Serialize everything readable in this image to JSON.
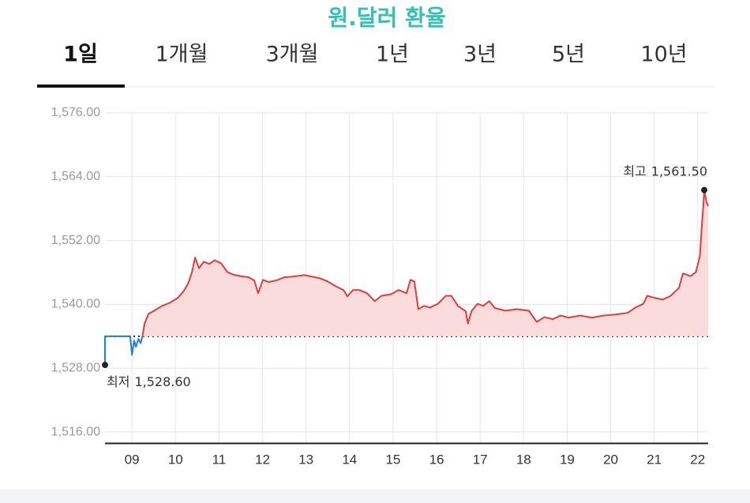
{
  "title": "원.달러 환율",
  "tabs": [
    "1일",
    "1개월",
    "3개월",
    "1년",
    "3년",
    "5년",
    "10년"
  ],
  "selected_tab": 0,
  "chart_data": {
    "type": "line",
    "xlim": [
      8.38,
      22.24
    ],
    "xticks": [
      {
        "value": 9,
        "label": "09"
      },
      10,
      11,
      12,
      13,
      14,
      15,
      16,
      17,
      18,
      19,
      20,
      21,
      22
    ],
    "ylim": [
      1514,
      1576
    ],
    "yticks": [
      {
        "value": 1576,
        "label": "1,576.00"
      },
      {
        "value": 1564,
        "label": "1,564.00"
      },
      {
        "value": 1552,
        "label": "1,552.00"
      },
      {
        "value": 1540,
        "label": "1,540.00"
      },
      {
        "value": 1528,
        "label": "1,528.00"
      },
      {
        "value": 1516,
        "label": "1,516.00"
      }
    ],
    "grid": true,
    "baseline": 1534.0,
    "x": [
      8.38,
      8.38,
      8.96,
      9.0,
      9.05,
      9.09,
      9.15,
      9.2,
      9.24,
      9.29,
      9.38,
      9.51,
      9.69,
      9.87,
      10.05,
      10.18,
      10.29,
      10.38,
      10.45,
      10.54,
      10.65,
      10.78,
      10.9,
      11.05,
      11.19,
      11.32,
      11.5,
      11.68,
      11.81,
      11.9,
      12.01,
      12.14,
      12.32,
      12.5,
      12.68,
      12.96,
      13.14,
      13.32,
      13.5,
      13.68,
      13.86,
      13.95,
      14.08,
      14.22,
      14.4,
      14.58,
      14.73,
      14.95,
      15.13,
      15.31,
      15.4,
      15.49,
      15.58,
      15.71,
      15.85,
      16.03,
      16.21,
      16.34,
      16.49,
      16.67,
      16.72,
      16.8,
      16.94,
      17.07,
      17.21,
      17.34,
      17.58,
      17.85,
      18.12,
      18.3,
      18.48,
      18.67,
      18.85,
      19.03,
      19.3,
      19.57,
      19.84,
      20.12,
      20.39,
      20.57,
      20.75,
      20.84,
      21.02,
      21.2,
      21.38,
      21.57,
      21.66,
      21.84,
      21.96,
      22.05,
      22.09,
      22.13,
      22.15,
      22.2,
      22.24
    ],
    "series": [
      {
        "color": "#1e7fd6",
        "values": [
          1528.6,
          1534.0,
          1534.0,
          1530.5,
          1533.2,
          1532.0,
          1533.5,
          1532.7,
          1534.0,
          null,
          null,
          null,
          null,
          null,
          null,
          null,
          null,
          null,
          null,
          null,
          null,
          null,
          null,
          null,
          null,
          null,
          null,
          null,
          null,
          null,
          null,
          null,
          null,
          null,
          null,
          null,
          null,
          null,
          null,
          null,
          null,
          null,
          null,
          null,
          null,
          null,
          null,
          null,
          null,
          null,
          null,
          null,
          null,
          null,
          null,
          null,
          null,
          null,
          null,
          null,
          null,
          null,
          null,
          null,
          null,
          null,
          null,
          null,
          null,
          null,
          null,
          null,
          null,
          null,
          null,
          null,
          null,
          null,
          null,
          null,
          null,
          null,
          null,
          null,
          null,
          null,
          null,
          null,
          null,
          null,
          null,
          null,
          null,
          null,
          null
        ]
      },
      {
        "color": "#e03c3c",
        "fill": "#fbdcdc",
        "values": [
          null,
          null,
          null,
          null,
          null,
          null,
          null,
          null,
          1534.0,
          1536.4,
          1538.2,
          1538.8,
          1539.7,
          1540.3,
          1541.2,
          1542.4,
          1543.9,
          1546.1,
          1548.8,
          1546.8,
          1548.0,
          1547.6,
          1548.3,
          1547.7,
          1546.1,
          1545.6,
          1545.3,
          1545.1,
          1544.5,
          1542.1,
          1544.6,
          1544.2,
          1544.5,
          1545.1,
          1545.2,
          1545.5,
          1545.2,
          1544.9,
          1544.3,
          1543.4,
          1542.7,
          1541.5,
          1542.7,
          1542.7,
          1542.1,
          1540.6,
          1541.6,
          1541.9,
          1542.7,
          1542.1,
          1544.6,
          1544.3,
          1539.1,
          1539.7,
          1539.4,
          1540.1,
          1541.6,
          1541.6,
          1539.7,
          1538.7,
          1536.4,
          1538.7,
          1540.1,
          1539.7,
          1540.6,
          1539.3,
          1538.8,
          1539.1,
          1538.8,
          1536.7,
          1537.6,
          1537.2,
          1537.9,
          1537.5,
          1537.9,
          1537.5,
          1537.9,
          1538.1,
          1538.4,
          1539.4,
          1540.1,
          1541.6,
          1541.2,
          1540.9,
          1541.6,
          1543.1,
          1545.8,
          1545.3,
          1546.1,
          1549.1,
          1554.3,
          1558.7,
          1561.5,
          1559.3,
          1558.5
        ]
      }
    ],
    "annotations": [
      {
        "label": "최고",
        "value": 1561.5,
        "value_label": "1,561.50",
        "x": 22.15
      },
      {
        "label": "최저",
        "value": 1528.6,
        "value_label": "1,528.60",
        "x": 8.38
      }
    ]
  }
}
